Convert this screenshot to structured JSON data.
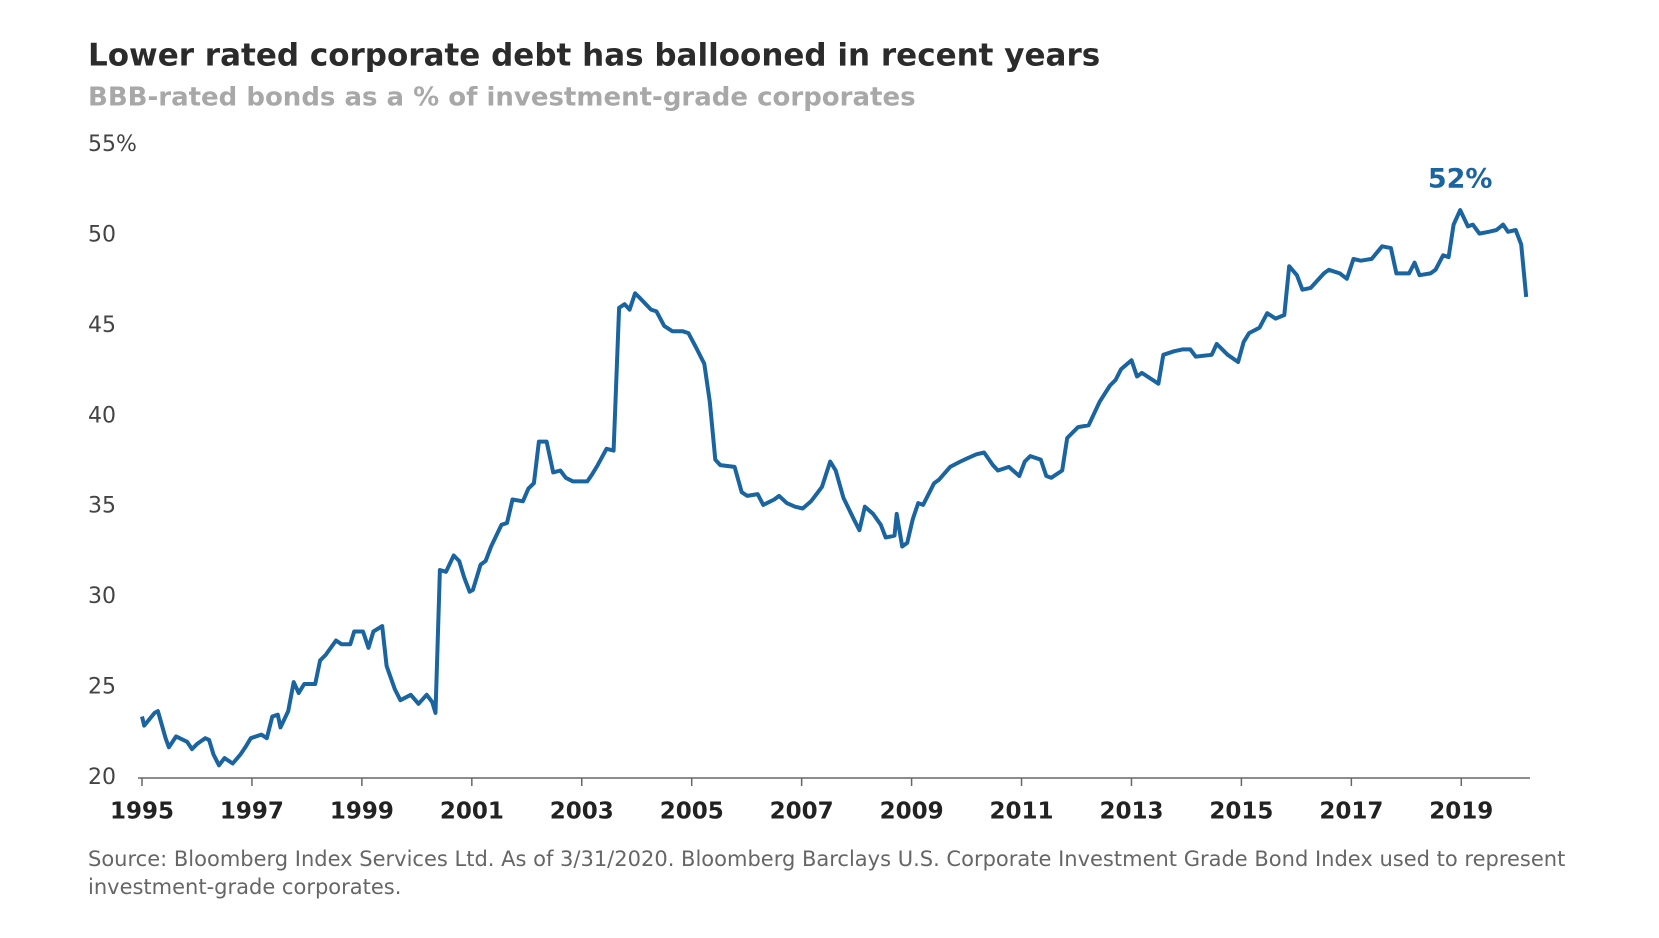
{
  "chart_data": {
    "type": "line",
    "title": "Lower rated corporate debt has ballooned in recent years",
    "subtitle": "BBB-rated bonds as a % of investment-grade corporates",
    "source": "Source: Bloomberg Index Services Ltd. As of 3/31/2020. Bloomberg Barclays U.S. Corporate Investment Grade Bond Index used to represent investment-grade corporates.",
    "annotation": "52%",
    "x": [
      1995.0,
      1995.04,
      1995.23,
      1995.29,
      1995.43,
      1995.49,
      1995.62,
      1995.82,
      1995.91,
      1996.01,
      1996.15,
      1996.22,
      1996.3,
      1996.4,
      1996.5,
      1996.65,
      1996.79,
      1996.88,
      1996.98,
      1997.17,
      1997.27,
      1997.37,
      1997.47,
      1997.52,
      1997.66,
      1997.76,
      1997.85,
      1997.95,
      1998.15,
      1998.24,
      1998.34,
      1998.53,
      1998.63,
      1998.79,
      1998.86,
      1999.02,
      1999.12,
      1999.21,
      1999.37,
      1999.45,
      1999.6,
      1999.7,
      1999.89,
      2000.03,
      2000.18,
      2000.28,
      2000.34,
      2000.42,
      2000.53,
      2000.67,
      2000.77,
      2000.86,
      2000.96,
      2001.02,
      2001.16,
      2001.25,
      2001.35,
      2001.54,
      2001.64,
      2001.74,
      2001.93,
      2002.03,
      2002.13,
      2002.22,
      2002.36,
      2002.48,
      2002.61,
      2002.71,
      2002.84,
      2003.1,
      2003.19,
      2003.29,
      2003.45,
      2003.58,
      2003.68,
      2003.78,
      2003.87,
      2003.97,
      2004.07,
      2004.26,
      2004.36,
      2004.5,
      2004.65,
      2004.84,
      2004.94,
      2005.08,
      2005.23,
      2005.33,
      2005.43,
      2005.52,
      2005.78,
      2005.91,
      2006.01,
      2006.2,
      2006.3,
      2006.5,
      2006.59,
      2006.73,
      2006.88,
      2007.02,
      2007.17,
      2007.27,
      2007.37,
      2007.52,
      2007.62,
      2007.76,
      2007.95,
      2008.05,
      2008.15,
      2008.3,
      2008.44,
      2008.53,
      2008.69,
      2008.73,
      2008.83,
      2008.92,
      2009.02,
      2009.12,
      2009.21,
      2009.41,
      2009.5,
      2009.7,
      2009.89,
      2010.03,
      2010.18,
      2010.32,
      2010.48,
      2010.57,
      2010.77,
      2010.96,
      2011.06,
      2011.16,
      2011.35,
      2011.45,
      2011.54,
      2011.74,
      2011.83,
      2012.03,
      2012.22,
      2012.42,
      2012.61,
      2012.71,
      2012.81,
      2013.0,
      2013.1,
      2013.19,
      2013.49,
      2013.58,
      2013.78,
      2013.93,
      2014.07,
      2014.17,
      2014.46,
      2014.55,
      2014.75,
      2014.94,
      2015.04,
      2015.14,
      2015.33,
      2015.47,
      2015.62,
      2015.78,
      2015.87,
      2016.01,
      2016.11,
      2016.26,
      2016.5,
      2016.59,
      2016.79,
      2016.92,
      2017.04,
      2017.17,
      2017.37,
      2017.56,
      2017.72,
      2017.82,
      2018.05,
      2018.15,
      2018.24,
      2018.44,
      2018.53,
      2018.67,
      2018.77,
      2018.86,
      2018.98,
      2019.12,
      2019.21,
      2019.33,
      2019.5,
      2019.64,
      2019.76,
      2019.85,
      2019.99,
      2020.09,
      2020.18
    ],
    "values": [
      23.4,
      22.9,
      23.6,
      23.7,
      22.2,
      21.7,
      22.3,
      22.0,
      21.6,
      21.9,
      22.2,
      22.1,
      21.3,
      20.7,
      21.1,
      20.8,
      21.3,
      21.7,
      22.2,
      22.4,
      22.2,
      23.4,
      23.5,
      22.8,
      23.7,
      25.3,
      24.7,
      25.2,
      25.2,
      26.5,
      26.8,
      27.6,
      27.4,
      27.4,
      28.1,
      28.1,
      27.2,
      28.1,
      28.4,
      26.2,
      24.9,
      24.3,
      24.6,
      24.1,
      24.6,
      24.2,
      23.6,
      31.5,
      31.4,
      32.3,
      32.0,
      31.1,
      30.3,
      30.4,
      31.8,
      32.0,
      32.8,
      34.0,
      34.1,
      35.4,
      35.3,
      36.0,
      36.3,
      38.6,
      38.6,
      36.9,
      37.0,
      36.6,
      36.4,
      36.4,
      36.8,
      37.3,
      38.2,
      38.1,
      46.0,
      46.2,
      45.9,
      46.8,
      46.5,
      45.9,
      45.8,
      45.0,
      44.7,
      44.7,
      44.6,
      43.8,
      42.9,
      40.8,
      37.6,
      37.3,
      37.2,
      35.8,
      35.6,
      35.7,
      35.1,
      35.4,
      35.6,
      35.2,
      35.0,
      34.9,
      35.3,
      35.7,
      36.1,
      37.5,
      37.0,
      35.5,
      34.3,
      33.7,
      35.0,
      34.6,
      34.0,
      33.3,
      33.4,
      34.6,
      32.8,
      33.0,
      34.3,
      35.2,
      35.1,
      36.3,
      36.5,
      37.2,
      37.5,
      37.7,
      37.9,
      38.0,
      37.3,
      37.0,
      37.2,
      36.7,
      37.5,
      37.8,
      37.6,
      36.7,
      36.6,
      37.0,
      38.8,
      39.4,
      39.5,
      40.8,
      41.7,
      42.0,
      42.6,
      43.1,
      42.2,
      42.4,
      41.8,
      43.4,
      43.6,
      43.7,
      43.7,
      43.3,
      43.4,
      44.0,
      43.4,
      43.0,
      44.1,
      44.6,
      44.9,
      45.7,
      45.4,
      45.6,
      48.3,
      47.8,
      47.0,
      47.1,
      47.9,
      48.1,
      47.9,
      47.6,
      48.7,
      48.6,
      48.7,
      49.4,
      49.3,
      47.9,
      47.9,
      48.5,
      47.8,
      47.9,
      48.1,
      48.9,
      48.8,
      50.6,
      51.4,
      50.5,
      50.6,
      50.1,
      50.2,
      50.3,
      50.6,
      50.2,
      50.3,
      49.5,
      46.6
    ],
    "color": "#1a64a0",
    "xlim": [
      1995,
      2020.25
    ],
    "xticks": [
      1995,
      1997,
      1999,
      2001,
      2003,
      2005,
      2007,
      2009,
      2011,
      2013,
      2015,
      2017,
      2019
    ],
    "ylim": [
      20,
      55
    ],
    "yticks": [
      20,
      25,
      30,
      35,
      40,
      45,
      50,
      {
        "value": 55,
        "label": "55%"
      }
    ]
  }
}
